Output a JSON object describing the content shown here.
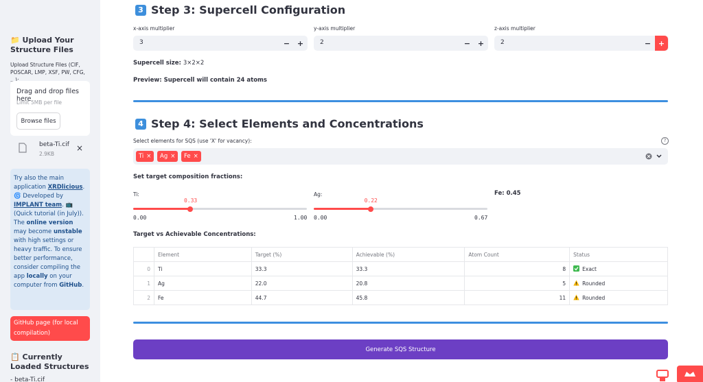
{
  "sidebar": {
    "upload_title": "📁 Upload Your Structure Files",
    "upload_label": "Upload Structure Files (CIF, POSCAR, LMP, XSF, PW, CFG, ...):",
    "drop_title": "Drag and drop files here",
    "drop_limit": "Limit 5MB per file",
    "browse": "Browse files",
    "file": {
      "name": "beta-Ti.cif",
      "size": "2.9KB",
      "remove": "×"
    },
    "info": [
      {
        "text": "Try also the main application "
      },
      {
        "text": "XRDlicious",
        "style": "link"
      },
      {
        "text": ". 🌀 Developed by "
      },
      {
        "text": "IMPLANT team",
        "style": "link"
      },
      {
        "text": ". 📺 (Quick tutorial (in July)). The "
      },
      {
        "text": "online version",
        "style": "bold"
      },
      {
        "text": " may become "
      },
      {
        "text": "unstable",
        "style": "bold"
      },
      {
        "text": " with high settings or heavy traffic. To ensure better performance, consider compiling the app "
      },
      {
        "text": "locally",
        "style": "bold"
      },
      {
        "text": " on your computer from "
      },
      {
        "text": "GitHub",
        "style": "bold"
      },
      {
        "text": "."
      }
    ],
    "github_button": "GitHub page (for local compilation)",
    "loaded_title": "📋 Currently Loaded Structures",
    "loaded_item": "- beta-Ti.cif"
  },
  "step3": {
    "icon": "3",
    "title": "Step 3: Supercell Configuration",
    "minus": "−",
    "plus": "+",
    "inputs": [
      {
        "label": "x-axis multiplier",
        "value": "3"
      },
      {
        "label": "y-axis multiplier",
        "value": "2"
      },
      {
        "label": "z-axis multiplier",
        "value": "2"
      }
    ],
    "size_label": "Supercell size:",
    "size_value": "3×2×2",
    "preview": "Preview: Supercell will contain 24 atoms"
  },
  "step4": {
    "icon": "4",
    "title": "Step 4: Select Elements and Concentrations",
    "select_label": "Select elements for SQS (use 'X' for vacancy):",
    "help": "?",
    "elements": [
      "Ti",
      "Ag",
      "Fe"
    ],
    "chip_remove": "×",
    "fractions_title": "Set target composition fractions:",
    "sliders": [
      {
        "label": "Ti:",
        "value": 0.33,
        "min": {
          "value": 0,
          "label": "0.00"
        },
        "max": {
          "value": 1,
          "label": "1.00"
        }
      },
      {
        "label": "Ag:",
        "value": 0.22,
        "min": {
          "value": 0,
          "label": "0.00"
        },
        "max": {
          "value": 0.67,
          "label": "0.67"
        }
      }
    ],
    "fixed": {
      "label": "Fe:",
      "value": 0.45
    },
    "table_title": "Target vs Achievable Concentrations:",
    "table": {
      "columns": [
        "Element",
        "Target (%)",
        "Achievable (%)",
        "Atom Count",
        "Status"
      ],
      "rows": [
        {
          "index": "0",
          "cells": [
            "Ti",
            "33.3",
            "33.3",
            "8",
            "Exact"
          ],
          "status": "ok"
        },
        {
          "index": "1",
          "cells": [
            "Ag",
            "22.0",
            "20.8",
            "5",
            "Rounded"
          ],
          "status": "warn"
        },
        {
          "index": "2",
          "cells": [
            "Fe",
            "44.7",
            "45.8",
            "11",
            "Rounded"
          ],
          "status": "warn"
        }
      ]
    },
    "button": "Generate SQS Structure"
  }
}
